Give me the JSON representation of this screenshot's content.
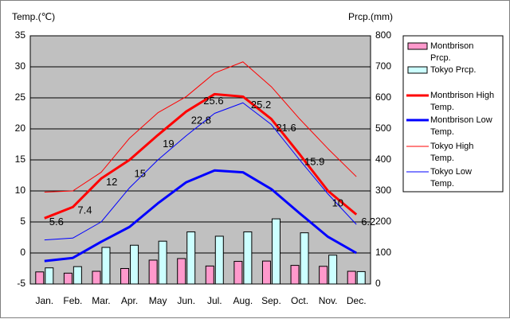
{
  "chart_data": {
    "type": "bar+line",
    "months": [
      "Jan.",
      "Feb.",
      "Mar.",
      "Apr.",
      "May",
      "Jun.",
      "Jul.",
      "Aug.",
      "Sep.",
      "Oct.",
      "Nov.",
      "Dec."
    ],
    "left_axis": {
      "title": "Temp.(℃)",
      "min": -5,
      "max": 35,
      "ticks": [
        -5,
        0,
        5,
        10,
        15,
        20,
        25,
        30,
        35
      ]
    },
    "right_axis": {
      "title": "Prcp.(mm)",
      "min": 0,
      "max": 800,
      "ticks": [
        0,
        100,
        200,
        300,
        400,
        500,
        600,
        700,
        800
      ]
    },
    "grid": true,
    "legend_position": "right",
    "bar_series": [
      {
        "name": "Montbrison Prcp.",
        "color": "#ff99cc",
        "values": [
          39,
          35,
          41,
          50,
          77,
          82,
          58,
          73,
          74,
          60,
          57,
          41
        ]
      },
      {
        "name": "Tokyo Prcp.",
        "color": "#ccffff",
        "values": [
          52,
          56,
          118,
          125,
          138,
          168,
          154,
          168,
          210,
          165,
          93,
          40
        ]
      }
    ],
    "line_series": [
      {
        "name": "Montbrison High Temp.",
        "color": "#ff0000",
        "width": 3,
        "values": [
          5.6,
          7.4,
          12,
          15,
          19,
          22.8,
          25.6,
          25.2,
          21.6,
          15.9,
          10,
          6.2
        ],
        "labels": [
          "5.6",
          "7.4",
          "12",
          "15",
          "19",
          "22.8",
          "25.6",
          "25.2",
          "21.6",
          "15.9",
          "10",
          "6.2"
        ]
      },
      {
        "name": "Montbrison Low Temp.",
        "color": "#0000ff",
        "width": 3,
        "values": [
          -1.3,
          -0.8,
          1.8,
          4.2,
          8,
          11.4,
          13.3,
          13,
          10.3,
          6.4,
          2.6,
          0
        ]
      },
      {
        "name": "Tokyo High Temp.",
        "color": "#ff0000",
        "width": 1,
        "values": [
          9.8,
          10,
          13,
          18.5,
          22.6,
          25.2,
          29,
          30.8,
          26.8,
          21.6,
          16.8,
          12.3
        ]
      },
      {
        "name": "Tokyo Low Temp.",
        "color": "#0000ff",
        "width": 1,
        "values": [
          2.1,
          2.4,
          5,
          10.5,
          15,
          18.9,
          22.5,
          24.2,
          20.7,
          15,
          9.5,
          4.6
        ]
      }
    ]
  },
  "legend": {
    "montbrison_prcp": "Montbrison\nPrcp.",
    "tokyo_prcp": "Tokyo Prcp.",
    "montbrison_high": "Montbrison High\nTemp.",
    "montbrison_low": "Montbrison Low\nTemp.",
    "tokyo_high": "Tokyo High\nTemp.",
    "tokyo_low": "Tokyo Low\nTemp."
  }
}
